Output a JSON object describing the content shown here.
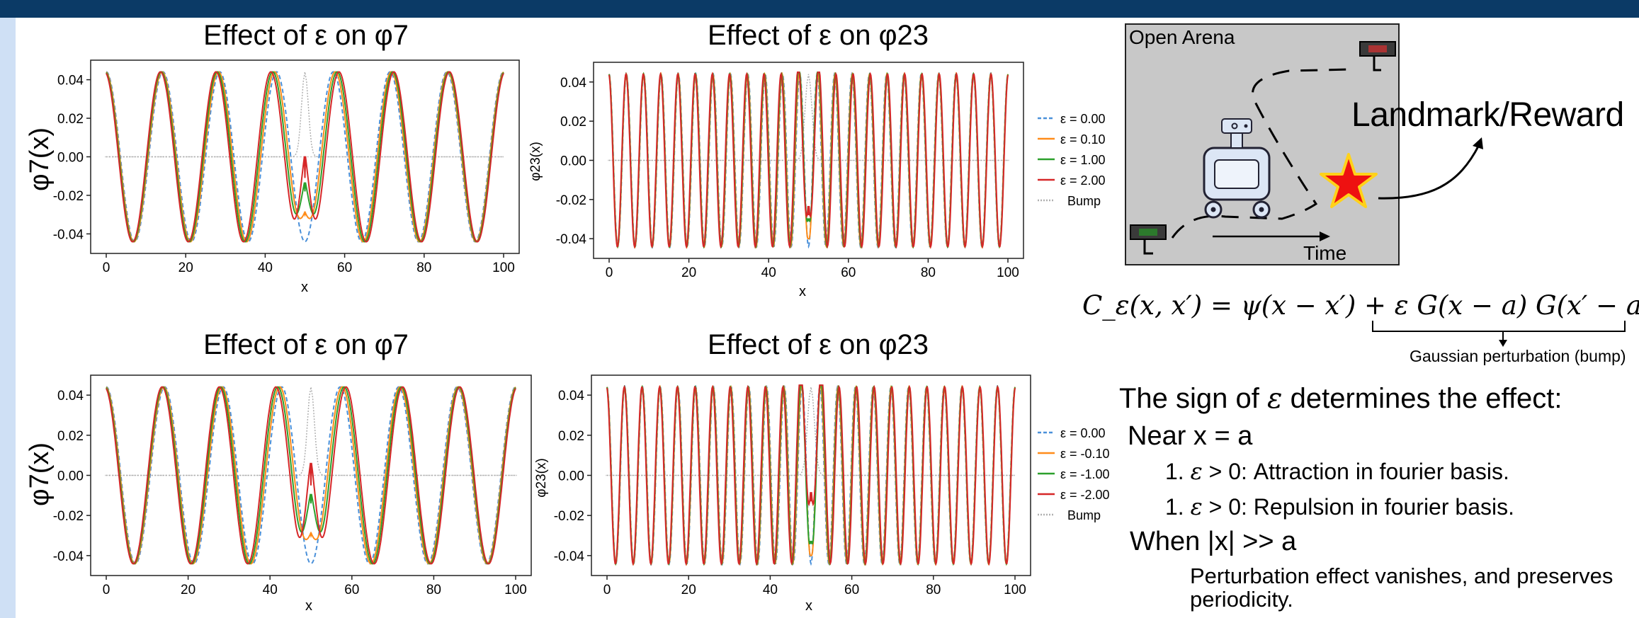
{
  "charts_text": {
    "p1_title": "Effect of ε on φ7",
    "p2_title": "Effect of ε on φ23",
    "p3_title": "Effect of ε on φ7",
    "p4_title": "Effect of ε on φ23",
    "p1_ylabel": "φ7(x)",
    "p2_ylabel": "φ23(x)",
    "p3_ylabel": "φ7(x)",
    "p4_ylabel": "φ23(x)",
    "xlabel": "x"
  },
  "chart_data": [
    {
      "type": "line",
      "title": "Effect of ε on φ7",
      "xlabel": "x",
      "ylabel": "φ7(x)",
      "xlim": [
        0,
        100
      ],
      "ylim": [
        -0.045,
        0.045
      ],
      "xticks": [
        "0",
        "20",
        "40",
        "60",
        "80",
        "100"
      ],
      "yticks": [
        "0.04",
        "0.02",
        "0.00",
        "-0.02",
        "-0.04"
      ],
      "legend": "none",
      "series": [
        {
          "name": "ε = 0.00",
          "freq": 7,
          "center_value": -0.044
        },
        {
          "name": "ε = 0.10",
          "freq": 7,
          "center_value": -0.03
        },
        {
          "name": "ε = 1.00",
          "freq": 7,
          "center_value": -0.018
        },
        {
          "name": "ε = 2.00",
          "freq": 7,
          "center_value": -0.011
        },
        {
          "name": "Bump",
          "center": 50,
          "peak": 0.044
        }
      ]
    },
    {
      "type": "line",
      "title": "Effect of ε on φ23",
      "xlabel": "x",
      "ylabel": "φ23(x)",
      "xlim": [
        0,
        100
      ],
      "ylim": [
        -0.045,
        0.045
      ],
      "xticks": [
        "0",
        "20",
        "40",
        "60",
        "80",
        "100"
      ],
      "yticks": [
        "0.04",
        "0.02",
        "0.00",
        "-0.02",
        "-0.04"
      ],
      "legend": "right",
      "series": [
        {
          "name": "ε = 0.00",
          "freq": 23,
          "center_value": -0.044
        },
        {
          "name": "ε = 0.10",
          "freq": 23,
          "center_value": -0.04
        },
        {
          "name": "ε = 1.00",
          "freq": 23,
          "center_value": -0.031
        },
        {
          "name": "ε = 2.00",
          "freq": 23,
          "center_value": -0.028
        },
        {
          "name": "Bump",
          "center": 50,
          "peak": 0.044
        }
      ]
    },
    {
      "type": "line",
      "title": "Effect of ε on φ7",
      "xlabel": "x",
      "ylabel": "φ7(x)",
      "xlim": [
        0,
        100
      ],
      "ylim": [
        -0.045,
        0.045
      ],
      "xticks": [
        "0",
        "20",
        "40",
        "60",
        "80",
        "100"
      ],
      "yticks": [
        "0.04",
        "0.02",
        "0.00",
        "-0.02",
        "-0.04"
      ],
      "legend": "none",
      "series": [
        {
          "name": "ε = 0.00",
          "freq": 7,
          "center_value": -0.044
        },
        {
          "name": "ε = -0.10",
          "freq": 7,
          "center_value": -0.03
        },
        {
          "name": "ε = -1.00",
          "freq": 7,
          "center_value": -0.014
        },
        {
          "name": "ε = -2.00",
          "freq": 7,
          "center_value": -0.005
        },
        {
          "name": "Bump",
          "center": 50,
          "peak": 0.044
        }
      ]
    },
    {
      "type": "line",
      "title": "Effect of ε on φ23",
      "xlabel": "x",
      "ylabel": "φ23(x)",
      "xlim": [
        0,
        100
      ],
      "ylim": [
        -0.045,
        0.045
      ],
      "xticks": [
        "0",
        "20",
        "40",
        "60",
        "80",
        "100"
      ],
      "yticks": [
        "0.04",
        "0.02",
        "0.00",
        "-0.02",
        "-0.04"
      ],
      "legend": "right",
      "series": [
        {
          "name": "ε = 0.00",
          "freq": 23,
          "center_value": -0.044
        },
        {
          "name": "ε = -0.10",
          "freq": 23,
          "center_value": -0.04
        },
        {
          "name": "ε = -1.00",
          "freq": 23,
          "center_value": -0.034
        },
        {
          "name": "ε = -2.00",
          "freq": 23,
          "center_value": -0.013
        },
        {
          "name": "Bump",
          "center": 50,
          "peak": 0.044
        }
      ]
    }
  ],
  "colors": {
    "eps0": "#4a90d9",
    "eps1": "#ff8c1a",
    "eps2": "#2ca02c",
    "eps3": "#d62728",
    "bump": "#b0b0b0",
    "topbar": "#0b3a66",
    "sidebar": "#cfe0f5"
  },
  "diagram": {
    "arena_title": "Open Arena",
    "landmark_label": "Landmark/Reward",
    "time_label": "Time",
    "icons": [
      "robot-icon",
      "star-icon",
      "start-sign-icon",
      "end-sign-icon"
    ]
  },
  "formula": {
    "text": "C_ε(x, x′) = ψ(x − x′) + ε G(x − a) G(x′ − a)",
    "brace_label": "Gaussian perturbation (bump)"
  },
  "explanation": {
    "heading_prefix": "The sign of ",
    "heading_symbol": "ε",
    "heading_suffix": " determines the effect:",
    "near_label": "Near x = a",
    "item1_num": "1. ",
    "item1_symbol": "ε",
    "item1_text": " > 0: Attraction in fourier basis.",
    "item2_num": "1. ",
    "item2_symbol": "ε",
    "item2_text": " > 0: Repulsion in fourier basis.",
    "when_label": "When |x| >> a",
    "vanish_note": "Perturbation effect vanishes, and preserves periodicity."
  }
}
